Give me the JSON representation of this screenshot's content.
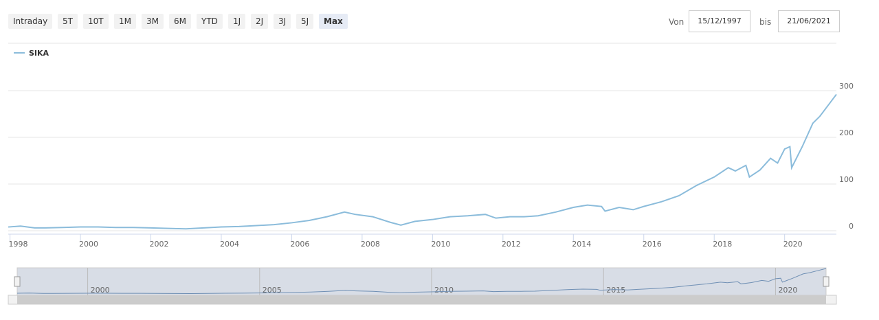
{
  "controls": {
    "ranges": [
      "Intraday",
      "5T",
      "10T",
      "1M",
      "3M",
      "6M",
      "YTD",
      "1J",
      "2J",
      "3J",
      "5J",
      "Max"
    ],
    "active_range_index": 11,
    "from_label": "Von",
    "from": "15/12/1997",
    "to_label": "bis",
    "to": "21/06/2021"
  },
  "chart_data": {
    "type": "line",
    "x": [
      1997.95,
      1998.3,
      1998.7,
      1999.0,
      1999.5,
      2000.0,
      2000.5,
      2001.0,
      2001.5,
      2002.0,
      2002.5,
      2003.0,
      2003.5,
      2004.0,
      2004.5,
      2005.0,
      2005.5,
      2006.0,
      2006.5,
      2007.0,
      2007.5,
      2007.8,
      2008.3,
      2008.8,
      2009.1,
      2009.5,
      2010.0,
      2010.5,
      2011.0,
      2011.5,
      2011.8,
      2012.2,
      2012.6,
      2013.0,
      2013.5,
      2014.0,
      2014.4,
      2014.8,
      2014.9,
      2015.3,
      2015.7,
      2016.0,
      2016.5,
      2017.0,
      2017.5,
      2018.0,
      2018.4,
      2018.6,
      2018.9,
      2019.0,
      2019.3,
      2019.6,
      2019.8,
      2020.0,
      2020.15,
      2020.2,
      2020.5,
      2020.8,
      2021.0,
      2021.2,
      2021.47
    ],
    "series": [
      {
        "name": "SIKA",
        "color": "#8bbcdb",
        "values": [
          8,
          10,
          6,
          6,
          7,
          8,
          8,
          7,
          7,
          6,
          5,
          4,
          6,
          8,
          9,
          11,
          13,
          17,
          22,
          30,
          40,
          35,
          30,
          18,
          12,
          20,
          24,
          30,
          32,
          35,
          27,
          30,
          30,
          32,
          40,
          50,
          55,
          52,
          42,
          50,
          45,
          52,
          62,
          75,
          97,
          115,
          135,
          128,
          140,
          115,
          130,
          155,
          145,
          175,
          180,
          135,
          180,
          230,
          245,
          265,
          292
        ]
      }
    ],
    "xlim": [
      1997.95,
      2021.47
    ],
    "xticks": [
      1998,
      2000,
      2002,
      2004,
      2006,
      2008,
      2010,
      2012,
      2014,
      2016,
      2018,
      2020
    ],
    "ylim": [
      0,
      300
    ],
    "yticks": [
      0,
      100,
      200,
      300
    ],
    "grid": true,
    "navigator_xticks": [
      2000,
      2005,
      2010,
      2015,
      2020
    ],
    "navigator_color": "#6f8fb4"
  }
}
